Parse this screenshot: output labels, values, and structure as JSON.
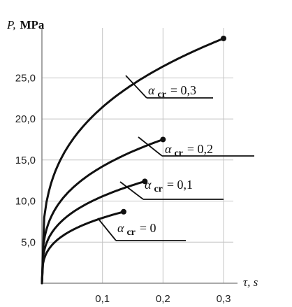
{
  "chart_data": {
    "type": "line",
    "ylabel_symbol": "P,",
    "ylabel_unit": "MPa",
    "xlabel": "τ, s",
    "xlim": [
      0,
      0.3
    ],
    "ylim": [
      0,
      31.5
    ],
    "x_ticks": [
      0.1,
      0.2,
      0.3
    ],
    "x_tick_labels": [
      "0,1",
      "0,2",
      "0,3"
    ],
    "y_ticks": [
      5,
      10,
      15,
      20,
      25
    ],
    "y_tick_labels": [
      "5,0",
      "10,0",
      "15,0",
      "20,0",
      "25,0"
    ],
    "grid": true,
    "series": [
      {
        "name": "α cr = 0,3",
        "label_main": "α",
        "label_sub": "cr",
        "label_value": "= 0,3",
        "end_x": 0.3,
        "end_y": 29.8
      },
      {
        "name": "α cr = 0,2",
        "label_main": "α",
        "label_sub": "cr",
        "label_value": "= 0,2",
        "end_x": 0.2,
        "end_y": 17.5
      },
      {
        "name": "α cr = 0,1",
        "label_main": "α",
        "label_sub": "cr",
        "label_value": "= 0,1",
        "end_x": 0.17,
        "end_y": 12.4
      },
      {
        "name": "α cr = 0",
        "label_main": "α",
        "label_sub": "cr",
        "label_value": "= 0",
        "end_x": 0.135,
        "end_y": 8.7
      }
    ]
  }
}
